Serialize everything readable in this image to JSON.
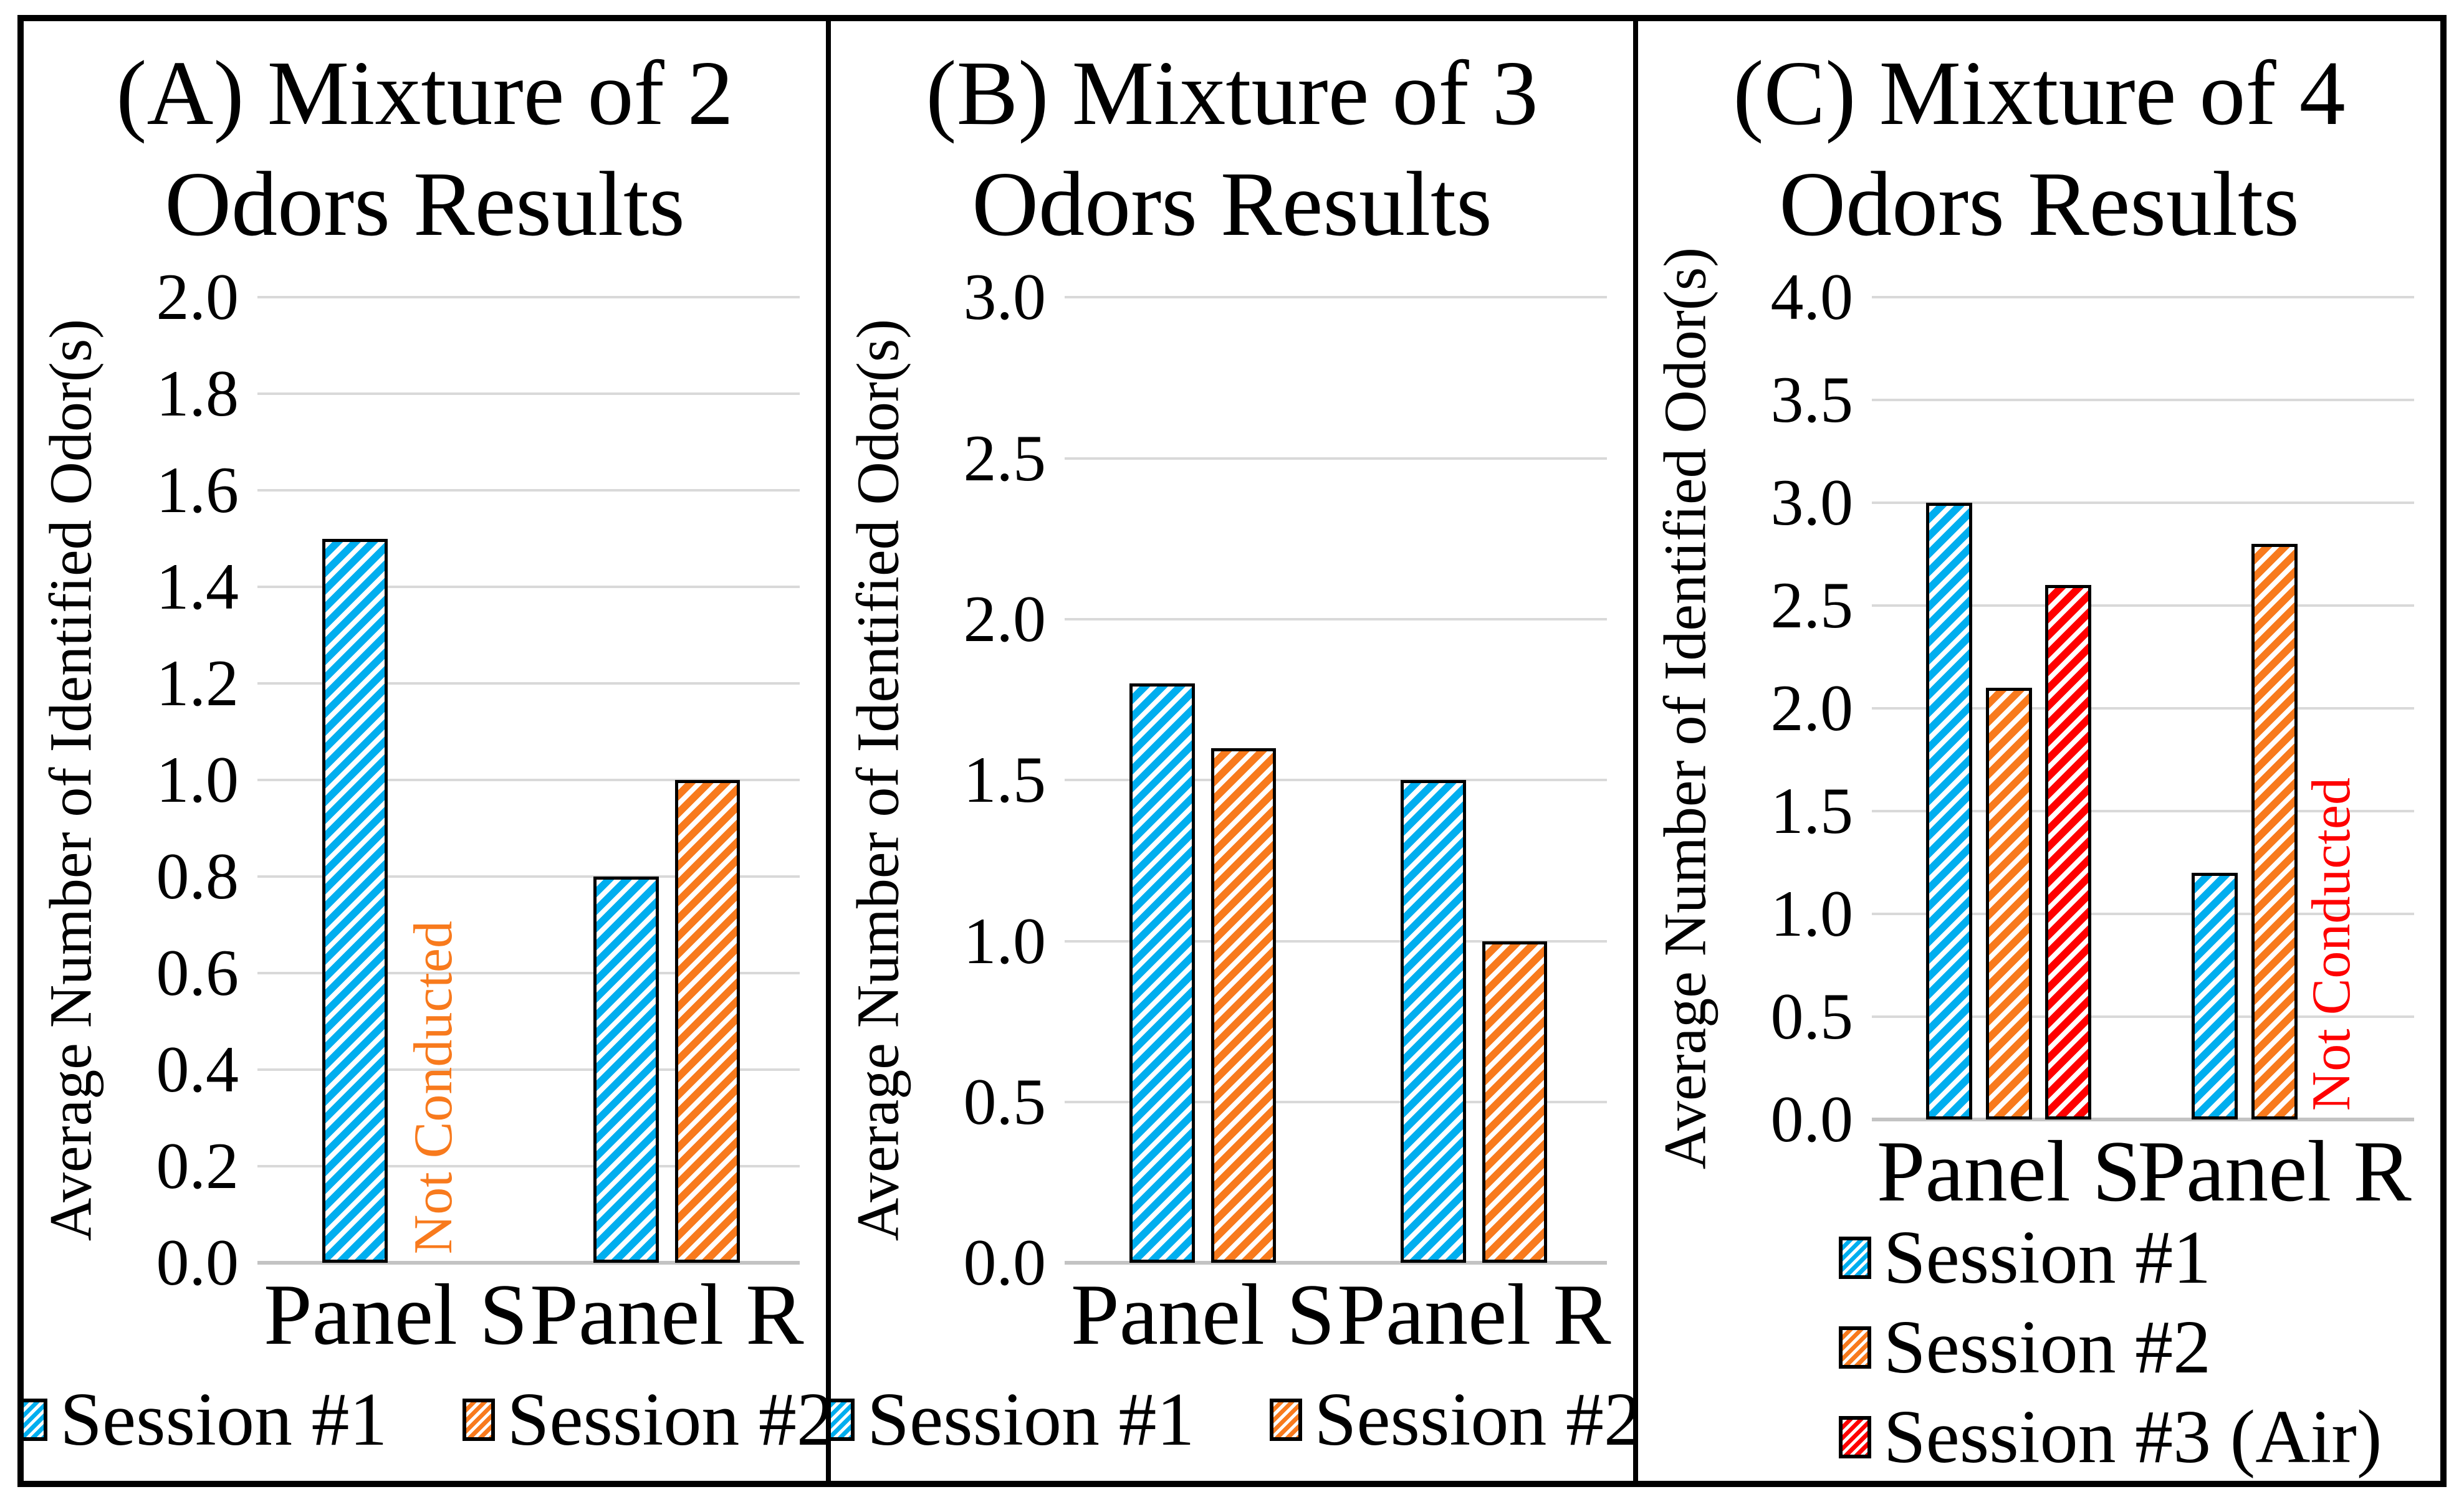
{
  "chart_data": [
    {
      "type": "bar",
      "panel_id": "A",
      "title_line1": "(A) Mixture of 2",
      "title_line2": "Odors Results",
      "ylabel": "Average Number of Identified Odor(s)",
      "xlabel": "",
      "categories": [
        "Panel S",
        "Panel R"
      ],
      "series": [
        {
          "name": "Session #1",
          "color": "#00AEEF",
          "values": [
            1.5,
            0.8
          ]
        },
        {
          "name": "Session #2",
          "color": "#F87A1D",
          "values": [
            null,
            1.0
          ],
          "missing_note": "Not Conducted",
          "missing_note_color": "#F87A1D"
        }
      ],
      "ylim": [
        0.0,
        2.0
      ],
      "ytick_step": 0.2,
      "yticks": [
        "2.0",
        "1.8",
        "1.6",
        "1.4",
        "1.2",
        "1.0",
        "0.8",
        "0.6",
        "0.4",
        "0.2",
        "0.0"
      ],
      "grid": true,
      "legend_position": "bottom-horizontal"
    },
    {
      "type": "bar",
      "panel_id": "B",
      "title_line1": "(B) Mixture of 3",
      "title_line2": "Odors Results",
      "ylabel": "Average Number of Identified Odor(s)",
      "xlabel": "",
      "categories": [
        "Panel S",
        "Panel R"
      ],
      "series": [
        {
          "name": "Session #1",
          "color": "#00AEEF",
          "values": [
            1.8,
            1.5
          ]
        },
        {
          "name": "Session #2",
          "color": "#F87A1D",
          "values": [
            1.6,
            1.0
          ]
        }
      ],
      "ylim": [
        0.0,
        3.0
      ],
      "ytick_step": 0.5,
      "yticks": [
        "3.0",
        "2.5",
        "2.0",
        "1.5",
        "1.0",
        "0.5",
        "0.0"
      ],
      "grid": true,
      "legend_position": "bottom-horizontal"
    },
    {
      "type": "bar",
      "panel_id": "C",
      "title_line1": "(C) Mixture of 4",
      "title_line2": "Odors Results",
      "ylabel": "Average Number of Identified Odor(s)",
      "xlabel": "",
      "categories": [
        "Panel S",
        "Panel R"
      ],
      "series": [
        {
          "name": "Session #1",
          "color": "#00AEEF",
          "values": [
            3.0,
            1.2
          ]
        },
        {
          "name": "Session #2",
          "color": "#F87A1D",
          "values": [
            2.1,
            2.8
          ]
        },
        {
          "name": "Session #3 (Air)",
          "color": "#FF0000",
          "values": [
            2.6,
            null
          ],
          "missing_note": "Not Conducted",
          "missing_note_color": "#FF0000"
        }
      ],
      "ylim": [
        0.0,
        4.0
      ],
      "ytick_step": 0.5,
      "yticks": [
        "4.0",
        "3.5",
        "3.0",
        "2.5",
        "2.0",
        "1.5",
        "1.0",
        "0.5",
        "0.0"
      ],
      "grid": true,
      "legend_position": "bottom-vertical"
    }
  ],
  "style_colors": {
    "session1": "#00AEEF",
    "session2": "#F87A1D",
    "session3": "#FF0000",
    "gridline": "#D9D9D9",
    "baseline": "#C3C3C3",
    "border": "#000000"
  }
}
